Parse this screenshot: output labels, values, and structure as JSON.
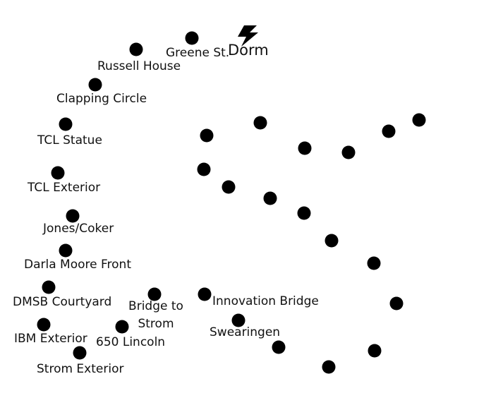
{
  "colors": {
    "dot": "#000000",
    "text": "#111111",
    "background": "#ffffff"
  },
  "dorm": {
    "label": "Dorm",
    "icon": "lightning-bolt-icon"
  },
  "labels": {
    "greene": "Greene St.",
    "russell": "Russell House",
    "clapping": "Clapping Circle",
    "tcl_statue": "TCL Statue",
    "tcl_exterior": "TCL Exterior",
    "jones_coker": "Jones/Coker",
    "darla_moore": "Darla Moore Front",
    "dmsb": "DMSB Courtyard",
    "ibm": "IBM Exterior",
    "strom_exterior": "Strom Exterior",
    "bridge_line1": "Bridge to",
    "bridge_line2": "Strom",
    "lincoln": "650 Lincoln",
    "innovation": "Innovation Bridge",
    "swearingen": "Swearingen"
  }
}
